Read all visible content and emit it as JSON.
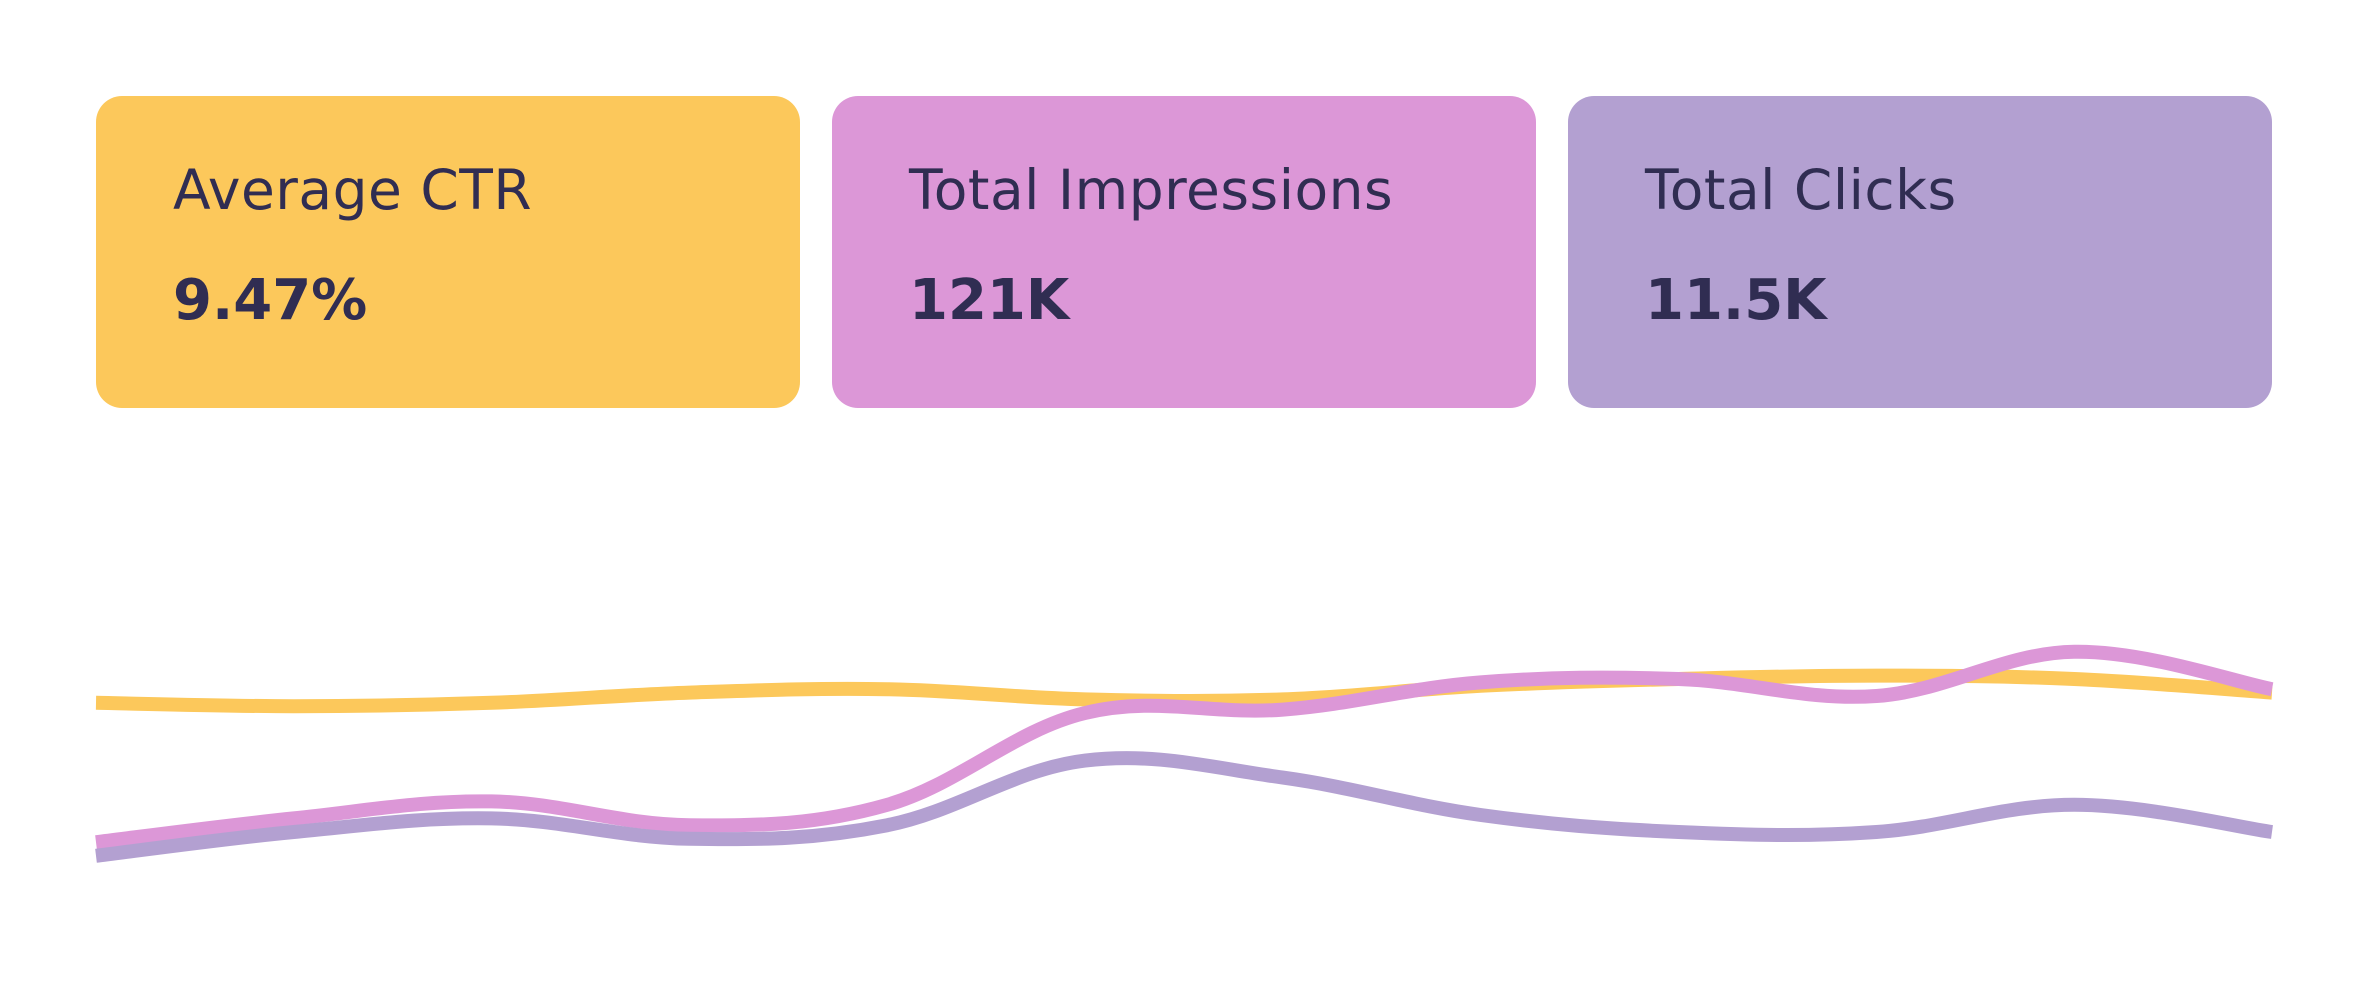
{
  "cards": [
    {
      "label": "Average CTR",
      "value": "9.47%",
      "color": "#fcc85b"
    },
    {
      "label": "Total Impressions",
      "value": "121K",
      "color": "#dc97d7"
    },
    {
      "label": "Total Clicks",
      "value": "11.5K",
      "color": "#b3a0d1"
    }
  ],
  "text_color": "#302d52",
  "chart_data": {
    "type": "line",
    "title": "",
    "xlabel": "",
    "ylabel": "",
    "grid": false,
    "axes_visible": false,
    "legend": "none",
    "smooth": true,
    "x": [
      0,
      1,
      2,
      3,
      4,
      5,
      6,
      7,
      8,
      9,
      10,
      11
    ],
    "xlim": [
      0,
      11
    ],
    "ylim": [
      0,
      100
    ],
    "series": [
      {
        "color": "#fcc85b",
        "values": [
          58,
          57,
          58,
          61,
          62,
          59,
          59,
          63,
          65,
          66,
          65,
          61
        ]
      },
      {
        "color": "#dc97d7",
        "values": [
          17,
          24,
          29,
          22,
          28,
          55,
          56,
          64,
          65,
          60,
          73,
          62
        ]
      },
      {
        "color": "#b3a0d1",
        "values": [
          13,
          20,
          24,
          18,
          22,
          41,
          36,
          25,
          20,
          20,
          28,
          20
        ]
      }
    ]
  }
}
